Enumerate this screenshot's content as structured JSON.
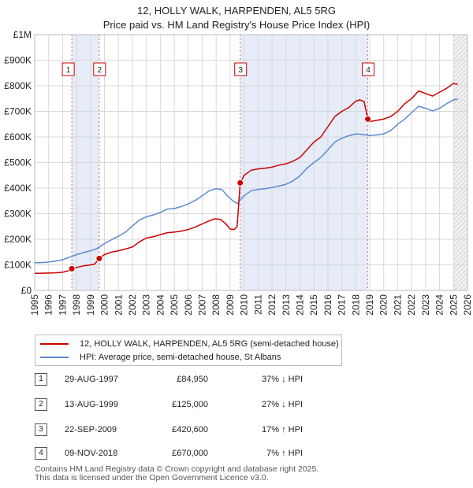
{
  "header": {
    "title": "12, HOLLY WALK, HARPENDEN, AL5 5RG",
    "subtitle": "Price paid vs. HM Land Registry's House Price Index (HPI)"
  },
  "chart_data": {
    "type": "line",
    "title": "12, HOLLY WALK, HARPENDEN, AL5 5RG",
    "subtitle": "Price paid vs. HM Land Registry's House Price Index (HPI)",
    "xlabel": "",
    "ylabel": "",
    "xlim": [
      1995,
      2026
    ],
    "ylim": [
      0,
      1000000
    ],
    "x_ticks": [
      1995,
      1996,
      1997,
      1998,
      1999,
      2000,
      2001,
      2002,
      2003,
      2004,
      2005,
      2006,
      2007,
      2008,
      2009,
      2010,
      2011,
      2012,
      2013,
      2014,
      2015,
      2016,
      2017,
      2018,
      2019,
      2020,
      2021,
      2022,
      2023,
      2024,
      2025,
      2026
    ],
    "y_ticks": [
      {
        "value": 0,
        "label": "£0"
      },
      {
        "value": 100000,
        "label": "£100K"
      },
      {
        "value": 200000,
        "label": "£200K"
      },
      {
        "value": 300000,
        "label": "£300K"
      },
      {
        "value": 400000,
        "label": "£400K"
      },
      {
        "value": 500000,
        "label": "£500K"
      },
      {
        "value": 600000,
        "label": "£600K"
      },
      {
        "value": 700000,
        "label": "£700K"
      },
      {
        "value": 800000,
        "label": "£800K"
      },
      {
        "value": 900000,
        "label": "£900K"
      },
      {
        "value": 1000000,
        "label": "£1M"
      }
    ],
    "grid": true,
    "forecast_from": 2025.0,
    "series": [
      {
        "name": "12, HOLLY WALK, HARPENDEN, AL5 5RG (semi-detached house)",
        "color": "#cc0000",
        "points": [
          [
            1995.0,
            67000
          ],
          [
            1995.5,
            67500
          ],
          [
            1996.0,
            68000
          ],
          [
            1996.5,
            69000
          ],
          [
            1997.0,
            71000
          ],
          [
            1997.4,
            77000
          ],
          [
            1997.66,
            84950
          ],
          [
            1998.0,
            90000
          ],
          [
            1998.5,
            96000
          ],
          [
            1999.0,
            100000
          ],
          [
            1999.3,
            103000
          ],
          [
            1999.62,
            125000
          ],
          [
            2000.0,
            140000
          ],
          [
            2000.5,
            150000
          ],
          [
            2001.0,
            155000
          ],
          [
            2001.5,
            162000
          ],
          [
            2002.0,
            170000
          ],
          [
            2002.5,
            190000
          ],
          [
            2003.0,
            205000
          ],
          [
            2003.5,
            210000
          ],
          [
            2004.0,
            218000
          ],
          [
            2004.5,
            226000
          ],
          [
            2005.0,
            228000
          ],
          [
            2005.5,
            232000
          ],
          [
            2006.0,
            238000
          ],
          [
            2006.5,
            248000
          ],
          [
            2007.0,
            260000
          ],
          [
            2007.5,
            272000
          ],
          [
            2007.9,
            280000
          ],
          [
            2008.3,
            278000
          ],
          [
            2008.7,
            260000
          ],
          [
            2009.0,
            240000
          ],
          [
            2009.3,
            238000
          ],
          [
            2009.5,
            250000
          ],
          [
            2009.72,
            420600
          ],
          [
            2010.0,
            450000
          ],
          [
            2010.5,
            470000
          ],
          [
            2011.0,
            475000
          ],
          [
            2011.5,
            478000
          ],
          [
            2012.0,
            482000
          ],
          [
            2012.5,
            490000
          ],
          [
            2013.0,
            495000
          ],
          [
            2013.5,
            505000
          ],
          [
            2014.0,
            520000
          ],
          [
            2014.5,
            550000
          ],
          [
            2015.0,
            580000
          ],
          [
            2015.5,
            600000
          ],
          [
            2016.0,
            640000
          ],
          [
            2016.5,
            680000
          ],
          [
            2017.0,
            700000
          ],
          [
            2017.5,
            715000
          ],
          [
            2018.0,
            740000
          ],
          [
            2018.3,
            745000
          ],
          [
            2018.6,
            738000
          ],
          [
            2018.86,
            670000
          ],
          [
            2019.0,
            660000
          ],
          [
            2019.5,
            665000
          ],
          [
            2020.0,
            670000
          ],
          [
            2020.5,
            680000
          ],
          [
            2021.0,
            700000
          ],
          [
            2021.5,
            730000
          ],
          [
            2022.0,
            750000
          ],
          [
            2022.5,
            780000
          ],
          [
            2023.0,
            770000
          ],
          [
            2023.5,
            760000
          ],
          [
            2024.0,
            775000
          ],
          [
            2024.5,
            790000
          ],
          [
            2025.0,
            810000
          ],
          [
            2025.3,
            805000
          ]
        ]
      },
      {
        "name": "HPI: Average price, semi-detached house, St Albans",
        "color": "#5b8ad0",
        "points": [
          [
            1995.0,
            108000
          ],
          [
            1995.5,
            109000
          ],
          [
            1996.0,
            111000
          ],
          [
            1996.5,
            115000
          ],
          [
            1997.0,
            120000
          ],
          [
            1997.5,
            130000
          ],
          [
            1998.0,
            140000
          ],
          [
            1998.5,
            148000
          ],
          [
            1999.0,
            155000
          ],
          [
            1999.5,
            165000
          ],
          [
            2000.0,
            183000
          ],
          [
            2000.5,
            198000
          ],
          [
            2001.0,
            212000
          ],
          [
            2001.5,
            228000
          ],
          [
            2002.0,
            252000
          ],
          [
            2002.5,
            275000
          ],
          [
            2003.0,
            288000
          ],
          [
            2003.5,
            295000
          ],
          [
            2004.0,
            305000
          ],
          [
            2004.5,
            318000
          ],
          [
            2005.0,
            320000
          ],
          [
            2005.5,
            328000
          ],
          [
            2006.0,
            338000
          ],
          [
            2006.5,
            352000
          ],
          [
            2007.0,
            370000
          ],
          [
            2007.5,
            390000
          ],
          [
            2008.0,
            398000
          ],
          [
            2008.4,
            395000
          ],
          [
            2008.8,
            370000
          ],
          [
            2009.2,
            350000
          ],
          [
            2009.5,
            340000
          ],
          [
            2010.0,
            370000
          ],
          [
            2010.5,
            390000
          ],
          [
            2011.0,
            395000
          ],
          [
            2011.5,
            398000
          ],
          [
            2012.0,
            402000
          ],
          [
            2012.5,
            408000
          ],
          [
            2013.0,
            415000
          ],
          [
            2013.5,
            428000
          ],
          [
            2014.0,
            448000
          ],
          [
            2014.5,
            478000
          ],
          [
            2015.0,
            500000
          ],
          [
            2015.5,
            520000
          ],
          [
            2016.0,
            550000
          ],
          [
            2016.5,
            580000
          ],
          [
            2017.0,
            595000
          ],
          [
            2017.5,
            605000
          ],
          [
            2018.0,
            612000
          ],
          [
            2018.5,
            610000
          ],
          [
            2019.0,
            605000
          ],
          [
            2019.5,
            608000
          ],
          [
            2020.0,
            612000
          ],
          [
            2020.5,
            625000
          ],
          [
            2021.0,
            650000
          ],
          [
            2021.5,
            670000
          ],
          [
            2022.0,
            695000
          ],
          [
            2022.5,
            720000
          ],
          [
            2023.0,
            712000
          ],
          [
            2023.5,
            702000
          ],
          [
            2024.0,
            712000
          ],
          [
            2024.5,
            730000
          ],
          [
            2025.0,
            745000
          ],
          [
            2025.3,
            748000
          ]
        ]
      }
    ],
    "sales": [
      {
        "marker": "1",
        "x": 1997.66,
        "price": 84950
      },
      {
        "marker": "2",
        "x": 1999.62,
        "price": 125000
      },
      {
        "marker": "3",
        "x": 2009.72,
        "price": 420600
      },
      {
        "marker": "4",
        "x": 2018.86,
        "price": 670000
      }
    ]
  },
  "legend": {
    "property_label": "12, HOLLY WALK, HARPENDEN, AL5 5RG (semi-detached house)",
    "hpi_label": "HPI: Average price, semi-detached house, St Albans",
    "property_color": "#cc0000",
    "hpi_color": "#5b8ad0"
  },
  "transactions": [
    {
      "num": "1",
      "date": "29-AUG-1997",
      "price": "£84,950",
      "hpi": "37% ↓ HPI"
    },
    {
      "num": "2",
      "date": "13-AUG-1999",
      "price": "£125,000",
      "hpi": "27% ↓ HPI"
    },
    {
      "num": "3",
      "date": "22-SEP-2009",
      "price": "£420,600",
      "hpi": "17% ↑ HPI"
    },
    {
      "num": "4",
      "date": "09-NOV-2018",
      "price": "£670,000",
      "hpi": "7% ↑ HPI"
    }
  ],
  "footer": {
    "line1": "Contains HM Land Registry data © Crown copyright and database right 2025.",
    "line2": "This data is licensed under the Open Government Licence v3.0."
  }
}
